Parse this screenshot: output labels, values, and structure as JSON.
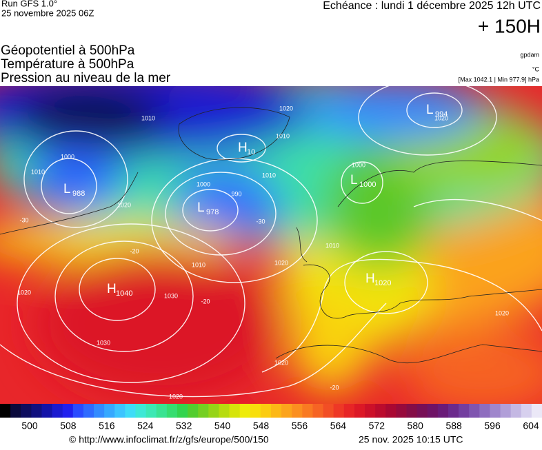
{
  "header": {
    "run": "Run GFS 1.0°",
    "run_date": "25 novembre 2025 06Z",
    "forecast": "Echéance : lundi 1 décembre 2025 12h UTC",
    "lead": "+ 150H"
  },
  "titles": [
    "Géopotentiel à 500hPa",
    "Température à 500hPa",
    "Pression au niveau de la mer"
  ],
  "units": {
    "geopotential": "gpdam",
    "temperature": "°C",
    "pressure": "[Max 1042.1 | Min 977.9] hPa"
  },
  "centers": [
    {
      "label": "L",
      "value": "988"
    },
    {
      "label": "L",
      "value": "978"
    },
    {
      "label": "H",
      "value": "1040"
    },
    {
      "label": "H",
      "value": "10"
    },
    {
      "label": "L",
      "value": "994"
    },
    {
      "label": "L",
      "value": "1000"
    },
    {
      "label": "H",
      "value": "1020"
    }
  ],
  "contour_labels": [
    "1010",
    "1000",
    "1010",
    "1020",
    "990",
    "1000",
    "1010",
    "1010",
    "1020",
    "1020",
    "1030",
    "1030",
    "1020",
    "1020",
    "1010",
    "1000",
    "1020",
    "1020",
    "-30",
    "-30",
    "-20",
    "-20",
    "-20",
    "1010",
    "1020"
  ],
  "colorbar": {
    "ticks": [
      "500",
      "508",
      "516",
      "524",
      "532",
      "540",
      "548",
      "556",
      "564",
      "572",
      "580",
      "588",
      "596",
      "604"
    ],
    "colors": [
      "#000000",
      "#0a0a3c",
      "#0d0d5e",
      "#10107f",
      "#1313a8",
      "#1a1ad0",
      "#2020ee",
      "#2a4bff",
      "#2f6bff",
      "#338bff",
      "#36a8ff",
      "#3cc4ff",
      "#3fdcf7",
      "#3ee8d6",
      "#3ce8b4",
      "#39e392",
      "#36dd70",
      "#33d44e",
      "#52cd2f",
      "#74cf22",
      "#96d417",
      "#b7dc0f",
      "#d6e40b",
      "#eeec0a",
      "#f8df0c",
      "#fbcc10",
      "#fcb816",
      "#fca41c",
      "#fb8f20",
      "#f97a22",
      "#f66424",
      "#f24e25",
      "#ee3826",
      "#e72526",
      "#dc1826",
      "#cc1029",
      "#bb0b2d",
      "#a90832",
      "#970a3c",
      "#850d47",
      "#780f56",
      "#6f1366",
      "#6a1b78",
      "#6b2a8c",
      "#733e9f",
      "#7f55b0",
      "#8e6dbf",
      "#9f86cc",
      "#b19fd8",
      "#c4b8e3",
      "#d7d0ee",
      "#ebe8f7"
    ]
  },
  "footer": {
    "source": "© http://www.infoclimat.fr/z/gfs/europe/500/150",
    "generated": "25 nov. 2025 10:15 UTC"
  }
}
